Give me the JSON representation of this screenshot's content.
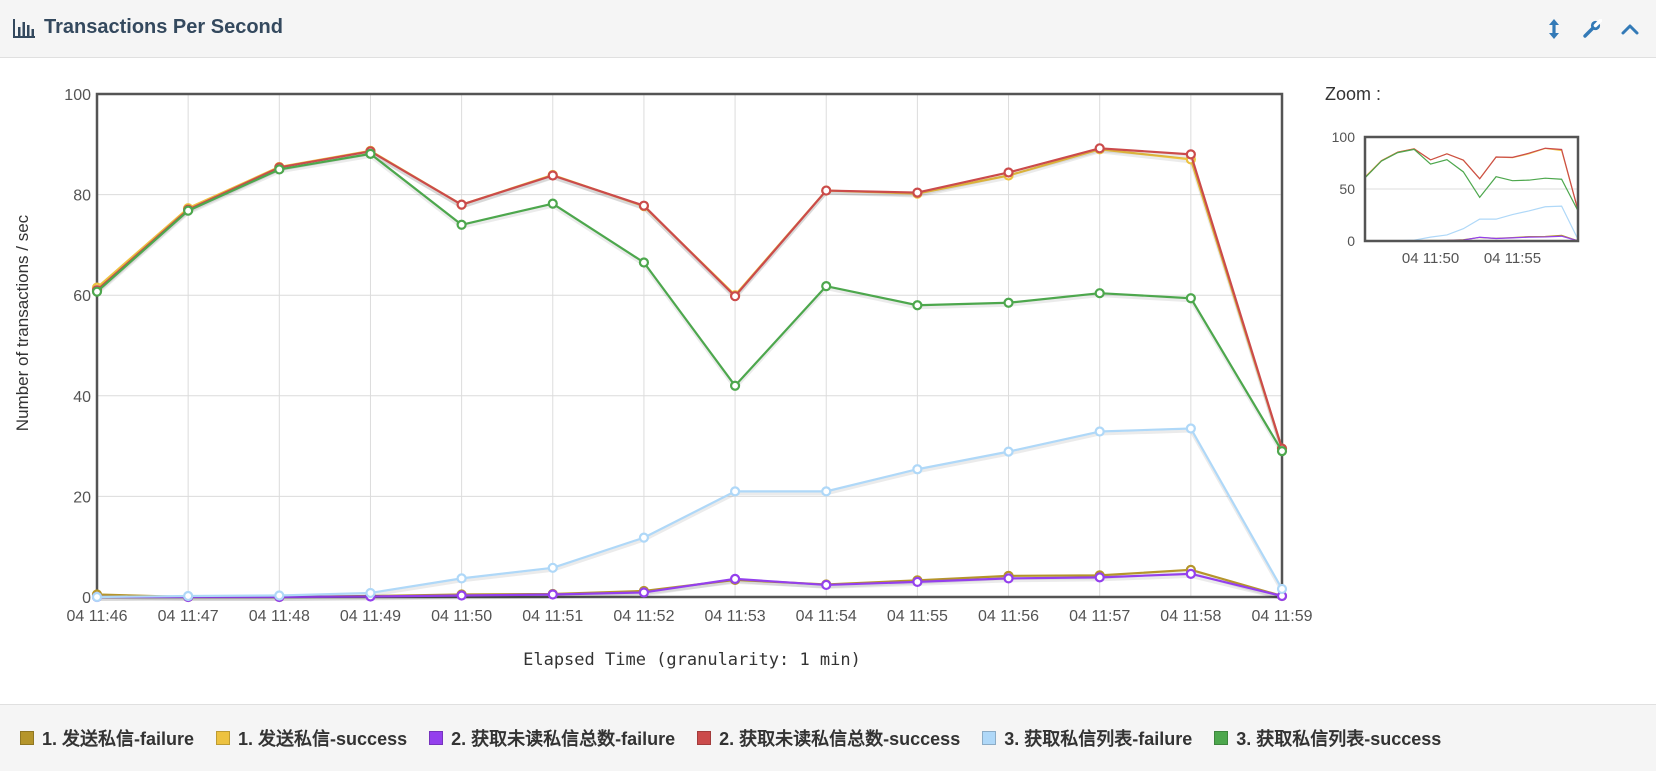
{
  "panel": {
    "title": "Transactions Per Second",
    "title_icon": "bar-chart-icon",
    "tools": [
      {
        "name": "resize-vertical-icon"
      },
      {
        "name": "wrench-icon"
      },
      {
        "name": "chevron-up-icon"
      }
    ]
  },
  "zoom": {
    "label": "Zoom :",
    "y_ticks": [
      "100",
      "50",
      "0"
    ],
    "x_ticks": [
      "04 11:50",
      "04 11:55"
    ]
  },
  "colors": {
    "accent": "#337ab7",
    "series": [
      "#b5952b",
      "#edc240",
      "#9440ed",
      "#cb4b4b",
      "#afd8f8",
      "#4da74d"
    ]
  },
  "chart_data": {
    "type": "line",
    "title": "",
    "xlabel": "Elapsed Time (granularity: 1 min)",
    "ylabel": "Number of transactions / sec",
    "ylim": [
      0,
      100
    ],
    "y_ticks": [
      "0",
      "20",
      "40",
      "60",
      "80",
      "100"
    ],
    "x": [
      "04 11:46",
      "04 11:47",
      "04 11:48",
      "04 11:49",
      "04 11:50",
      "04 11:51",
      "04 11:52",
      "04 11:53",
      "04 11:54",
      "04 11:55",
      "04 11:56",
      "04 11:57",
      "04 11:58",
      "04 11:59"
    ],
    "grid": true,
    "legend_position": "bottom",
    "series": [
      {
        "name": "1. 发送私信-failure",
        "color": "#b5952b",
        "values": [
          0.5,
          0,
          0,
          0.2,
          0.5,
          0.6,
          1.2,
          3.4,
          2.5,
          3.3,
          4.2,
          4.3,
          5.4,
          0.2
        ]
      },
      {
        "name": "1. 发送私信-success",
        "color": "#edc240",
        "values": [
          61.5,
          77.3,
          85.5,
          88.7,
          78.0,
          83.9,
          77.7,
          60.0,
          80.8,
          80.2,
          83.8,
          89.0,
          87.0,
          29.5
        ]
      },
      {
        "name": "2. 获取未读私信总数-failure",
        "color": "#9440ed",
        "values": [
          0,
          0,
          0,
          0.1,
          0.3,
          0.5,
          0.9,
          3.6,
          2.4,
          3.0,
          3.7,
          3.9,
          4.6,
          0.2
        ]
      },
      {
        "name": "2. 获取未读私信总数-success",
        "color": "#cb4b4b",
        "values": [
          61.0,
          77.0,
          85.4,
          88.6,
          78.0,
          83.8,
          77.8,
          59.8,
          80.8,
          80.4,
          84.4,
          89.2,
          88.0,
          29.5
        ]
      },
      {
        "name": "3. 获取私信列表-failure",
        "color": "#afd8f8",
        "values": [
          0,
          0.2,
          0.3,
          0.8,
          3.7,
          5.8,
          11.8,
          21.0,
          21.0,
          25.4,
          28.9,
          32.9,
          33.5,
          1.6
        ]
      },
      {
        "name": "3. 获取私信列表-success",
        "color": "#4da74d",
        "values": [
          60.7,
          76.8,
          85.0,
          88.1,
          74.0,
          78.2,
          66.5,
          42.0,
          61.8,
          58.0,
          58.5,
          60.4,
          59.4,
          29.0
        ]
      }
    ]
  }
}
